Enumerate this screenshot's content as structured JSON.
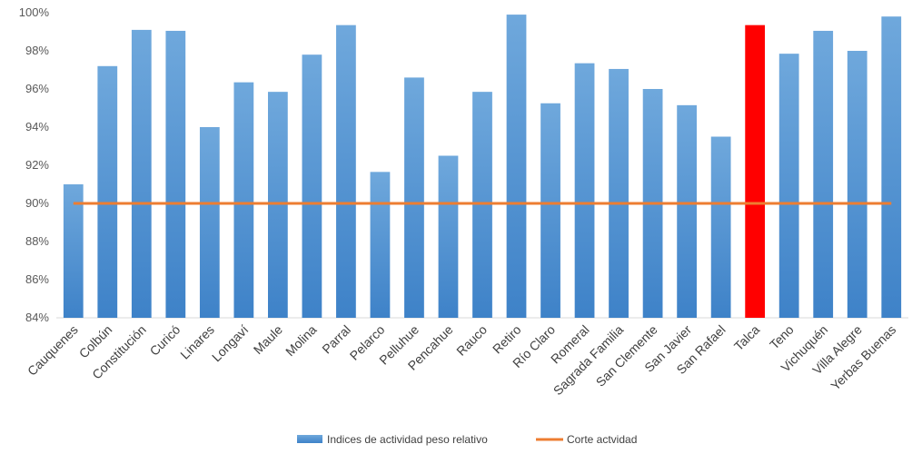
{
  "chart_data": {
    "type": "bar",
    "title": "",
    "xlabel": "",
    "ylabel": "",
    "categories": [
      "Cauquenes",
      "Colbún",
      "Constitución",
      "Curicó",
      "Linares",
      "Longaví",
      "Maule",
      "Molina",
      "Parral",
      "Pelarco",
      "Pelluhue",
      "Pencahue",
      "Rauco",
      "Retiro",
      "Río Claro",
      "Romeral",
      "Sagrada Familia",
      "San Clemente",
      "San Javier",
      "San Rafael",
      "Talca",
      "Teno",
      "Vichuquén",
      "Villa Alegre",
      "Yerbas Buenas"
    ],
    "y_ticks": [
      "84%",
      "86%",
      "88%",
      "90%",
      "92%",
      "94%",
      "96%",
      "98%",
      "100%"
    ],
    "ylim": [
      84,
      100
    ],
    "grid": false,
    "legend_position": "bottom",
    "series": [
      {
        "name": "Indices de actividad peso relativo",
        "kind": "bar",
        "color": "#5B9BD5",
        "highlight_color": "#FF0000",
        "highlight_category": "Talca",
        "values": [
          91.0,
          97.2,
          99.1,
          99.05,
          94.0,
          96.35,
          95.85,
          97.8,
          99.35,
          91.65,
          96.6,
          92.5,
          95.85,
          99.9,
          95.25,
          97.35,
          97.05,
          96.0,
          95.15,
          93.5,
          99.35,
          97.85,
          99.05,
          98.0,
          99.8
        ]
      },
      {
        "name": "Corte actvidad",
        "kind": "line",
        "color": "#ED7D31",
        "values": [
          90,
          90,
          90,
          90,
          90,
          90,
          90,
          90,
          90,
          90,
          90,
          90,
          90,
          90,
          90,
          90,
          90,
          90,
          90,
          90,
          90,
          90,
          90,
          90,
          90
        ]
      }
    ]
  }
}
